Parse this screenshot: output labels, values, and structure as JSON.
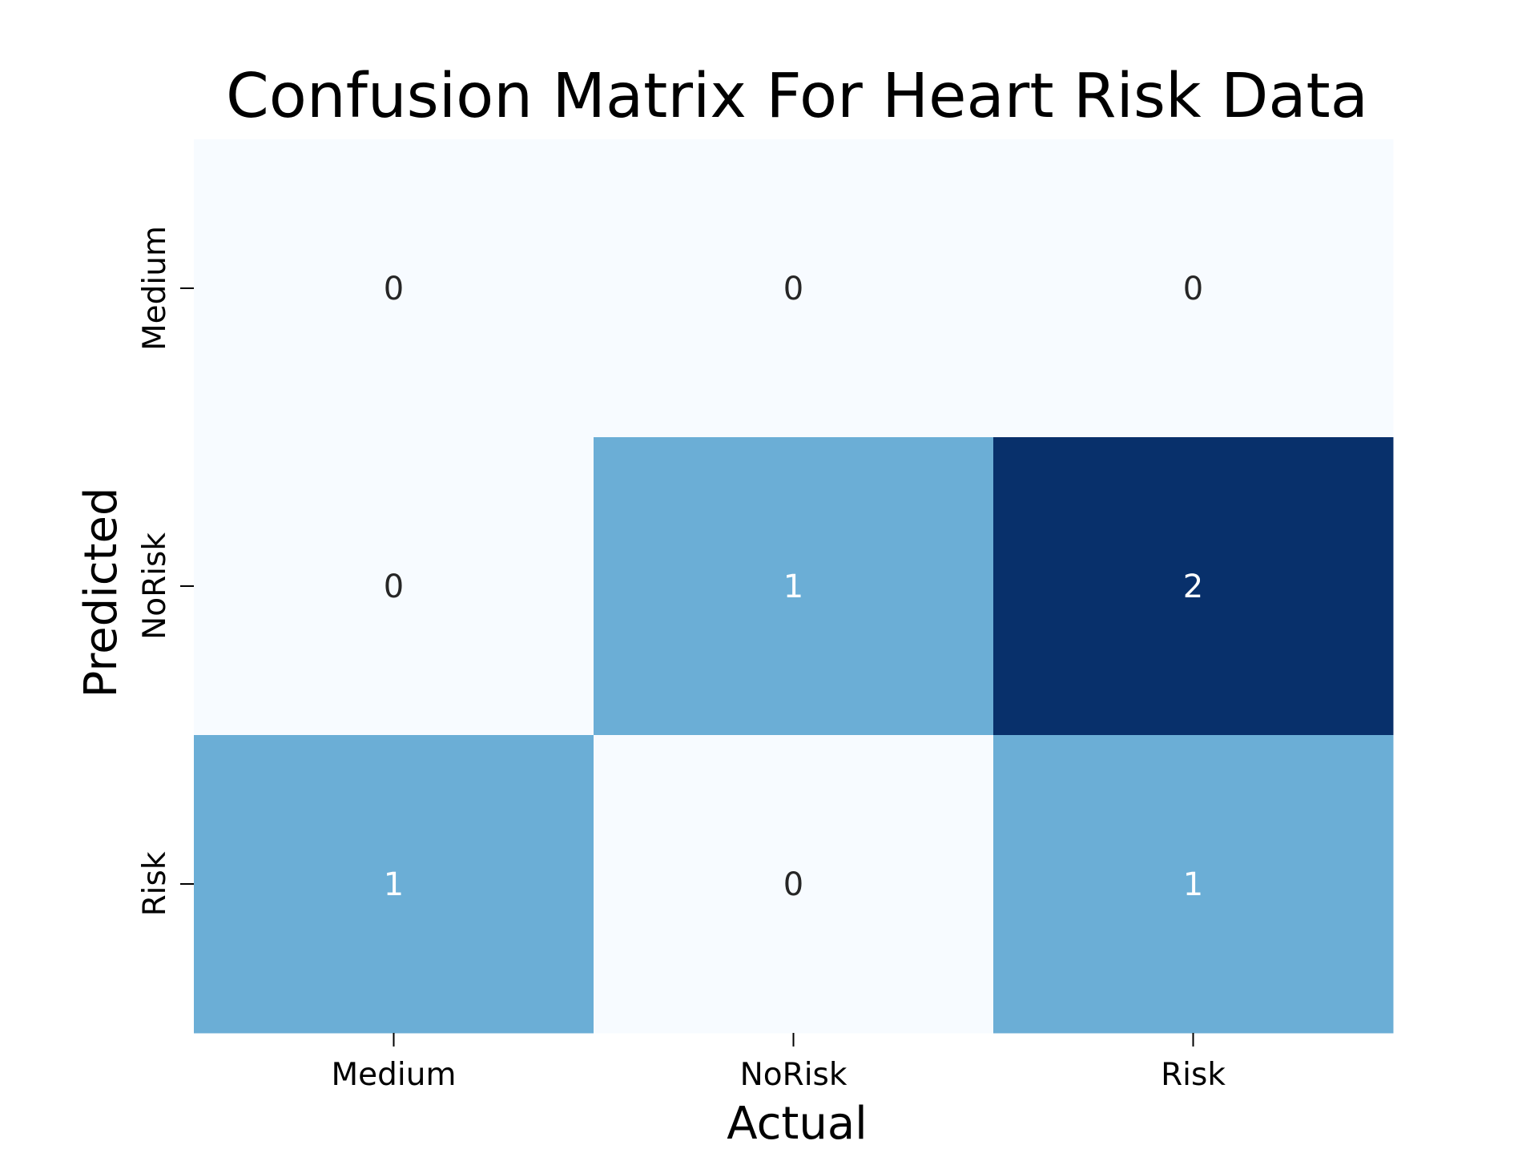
{
  "chart_data": {
    "type": "heatmap",
    "title": "Confusion Matrix For Heart Risk Data",
    "xlabel": "Actual",
    "ylabel": "Predicted",
    "x_categories": [
      "Medium",
      "NoRisk",
      "Risk"
    ],
    "y_categories": [
      "Medium",
      "NoRisk",
      "Risk"
    ],
    "values": [
      [
        0,
        0,
        0
      ],
      [
        0,
        1,
        2
      ],
      [
        1,
        0,
        1
      ]
    ],
    "colormap": "Blues",
    "value_range": [
      0,
      2
    ],
    "colors": {
      "low": "#f7fbff",
      "mid": "#6baed6",
      "high": "#08306b",
      "text_dark": "#262626",
      "text_light": "#ffffff"
    },
    "colorbar": false,
    "grid": false
  }
}
